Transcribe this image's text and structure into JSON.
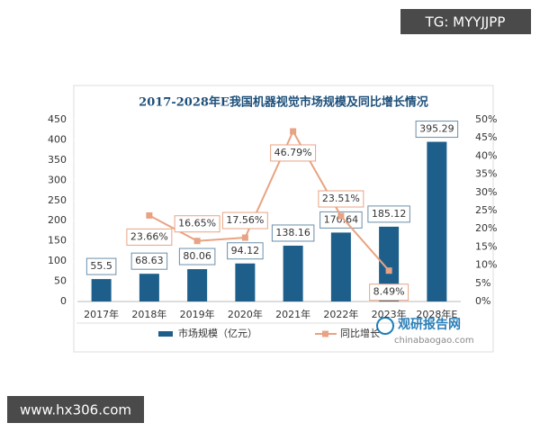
{
  "chart_data": {
    "type": "bar",
    "title": "2017-2028年E我国机器视觉市场规模及同比增长情况",
    "categories": [
      "2017年",
      "2018年",
      "2019年",
      "2020年",
      "2021年",
      "2022年",
      "2023年",
      "2028年E"
    ],
    "series": [
      {
        "name": "市场规模（亿元）",
        "type": "bar",
        "color": "#1d5f8a",
        "values": [
          55.5,
          68.63,
          80.06,
          94.12,
          138.16,
          170.64,
          185.12,
          395.29
        ]
      },
      {
        "name": "同比增长",
        "type": "line",
        "axis": "y2",
        "color": "#e8a384",
        "values": [
          null,
          23.66,
          16.65,
          17.56,
          46.79,
          23.51,
          8.49,
          null
        ],
        "value_labels": [
          null,
          "23.66%",
          "16.65%",
          "17.56%",
          "46.79%",
          "23.51%",
          "8.49%",
          null
        ]
      }
    ],
    "ylim": [
      0,
      450
    ],
    "yticks": [
      0,
      50,
      100,
      150,
      200,
      250,
      300,
      350,
      400,
      450
    ],
    "y2lim": [
      0,
      50
    ],
    "y2ticks": [
      {
        "value": 0,
        "label": "0%"
      },
      {
        "value": 5,
        "label": "5%"
      },
      {
        "value": 10,
        "label": "10%"
      },
      {
        "value": 15,
        "label": "15%"
      },
      {
        "value": 20,
        "label": "20%"
      },
      {
        "value": 25,
        "label": "25%"
      },
      {
        "value": 30,
        "label": "30%"
      },
      {
        "value": 35,
        "label": "35%"
      },
      {
        "value": 40,
        "label": "40%"
      },
      {
        "value": 45,
        "label": "45%"
      },
      {
        "value": 50,
        "label": "50%"
      }
    ],
    "grid": false,
    "legend": "bottom"
  },
  "source_logo": {
    "name": "观研报告网",
    "url": "chinabaogao.com"
  },
  "watermarks": [
    "TG: MYYJJPP",
    "www.hx306.com"
  ]
}
